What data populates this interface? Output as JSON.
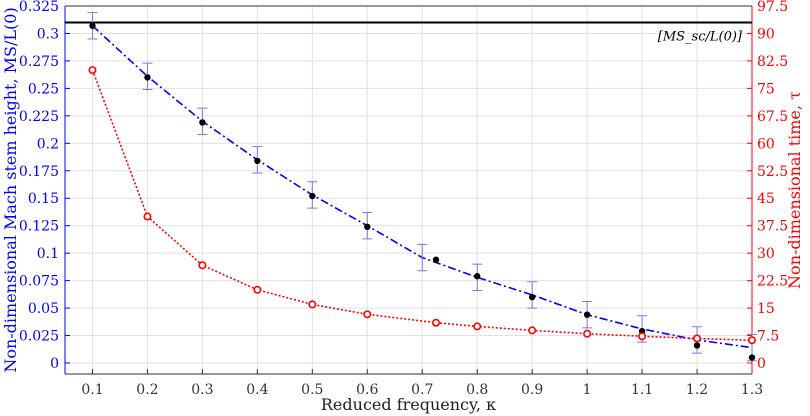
{
  "chart_data": {
    "type": "line",
    "xlabel": "Reduced frequency, κ",
    "ylabel_left": "Non-dimensional Mach stem height, MS/L(0)",
    "ylabel_right": "Non-dimensional time, τ",
    "x_ticks": [
      "0.1",
      "0.2",
      "0.3",
      "0.4",
      "0.5",
      "0.6",
      "0.7",
      "0.8",
      "0.9",
      "1",
      "1.1",
      "1.2",
      "1.3"
    ],
    "y_left_ticks": [
      "0",
      "0.025",
      "0.05",
      "0.075",
      "0.1",
      "0.125",
      "0.15",
      "0.175",
      "0.2",
      "0.225",
      "0.25",
      "0.275",
      "0.3",
      "0.325"
    ],
    "y_right_ticks": [
      "0",
      "7.5",
      "15",
      "22.5",
      "30",
      "37.5",
      "45",
      "52.5",
      "60",
      "67.5",
      "75",
      "82.5",
      "90",
      "97.5"
    ],
    "xlim": [
      0.05,
      1.3
    ],
    "ylim_left": [
      -0.01,
      0.325
    ],
    "ylim_right": [
      -3,
      97.5
    ],
    "grid": true,
    "reference_line": {
      "label": "[MS_sc/L(0)]",
      "y": 0.31,
      "color": "#000000"
    },
    "series": [
      {
        "axis": "left",
        "style": "dash-dot",
        "color": "#0000ff",
        "x": [
          0.1,
          0.2,
          0.3,
          0.4,
          0.5,
          0.6,
          0.7,
          0.8,
          0.9,
          1.0,
          1.1,
          1.2,
          1.3
        ],
        "y": [
          0.307,
          0.261,
          0.22,
          0.185,
          0.153,
          0.125,
          0.096,
          0.078,
          0.062,
          0.044,
          0.031,
          0.021,
          0.014
        ],
        "error": [
          0.012,
          0.012,
          0.012,
          0.012,
          0.012,
          0.012,
          0.012,
          0.012,
          0.012,
          0.012,
          0.012,
          0.012,
          0.012
        ]
      },
      {
        "axis": "left",
        "style": "markers",
        "color": "#000000",
        "x": [
          0.1,
          0.2,
          0.3,
          0.4,
          0.5,
          0.6,
          0.725,
          0.8,
          0.9,
          1.0,
          1.1,
          1.2,
          1.3
        ],
        "y": [
          0.307,
          0.26,
          0.219,
          0.184,
          0.152,
          0.124,
          0.094,
          0.079,
          0.06,
          0.044,
          0.029,
          0.016,
          0.005
        ]
      },
      {
        "axis": "right",
        "style": "dotted-circles",
        "color": "#ff0000",
        "x": [
          0.1,
          0.2,
          0.3,
          0.4,
          0.5,
          0.6,
          0.725,
          0.8,
          0.9,
          1.0,
          1.1,
          1.2,
          1.3
        ],
        "y": [
          80.0,
          40.0,
          26.7,
          20.0,
          16.0,
          13.3,
          11.0,
          10.0,
          8.9,
          8.0,
          7.3,
          6.7,
          6.2
        ]
      }
    ]
  }
}
